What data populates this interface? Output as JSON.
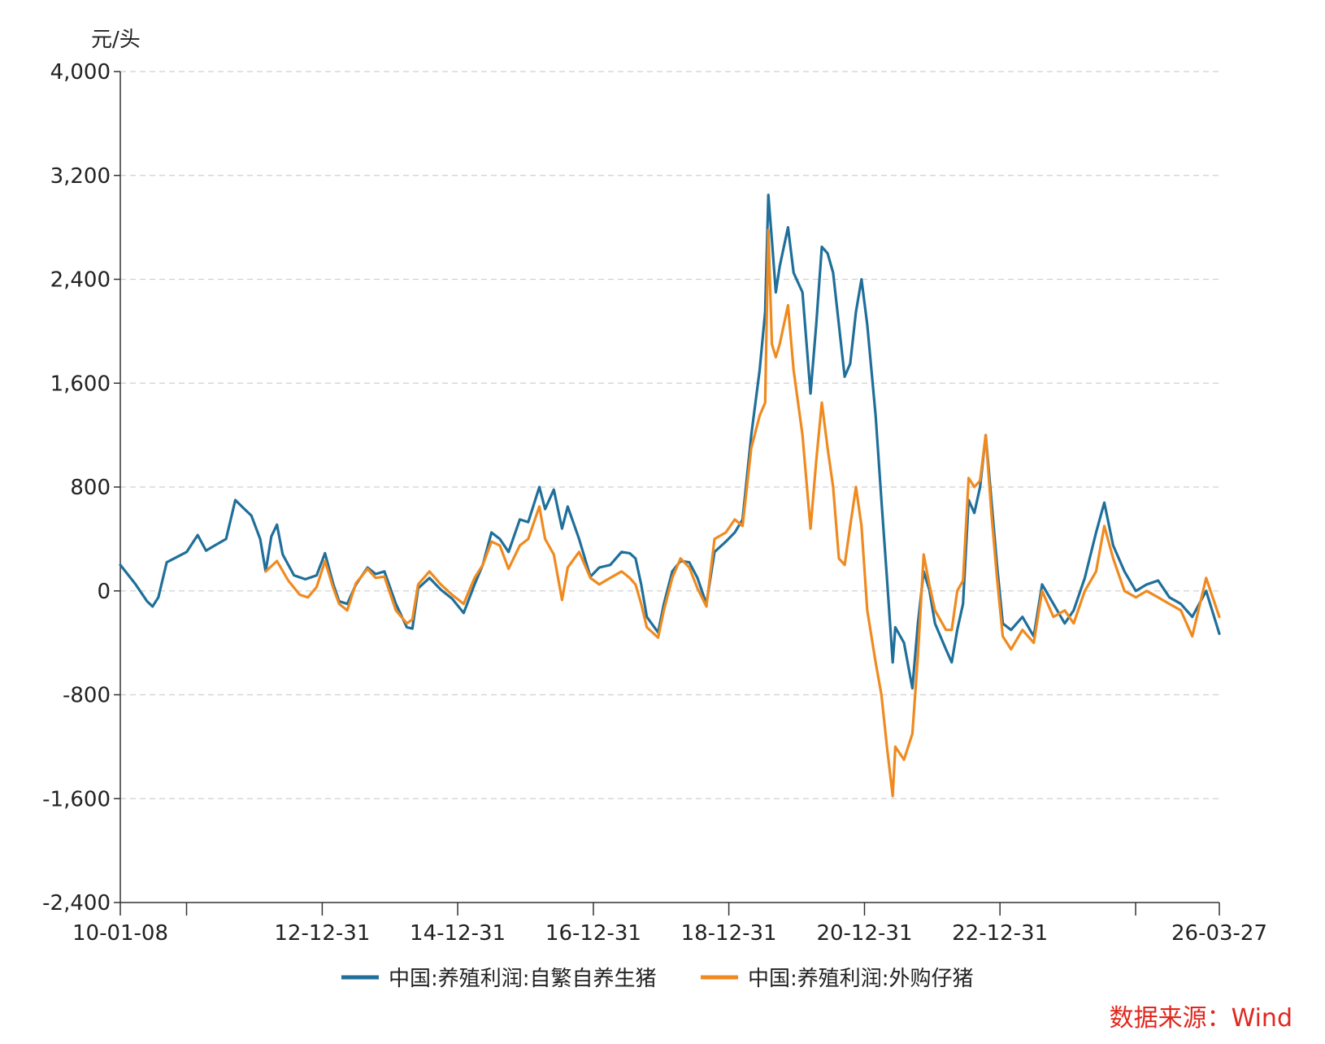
{
  "chart_data": {
    "type": "line",
    "ylabel": "元/头",
    "ylim": [
      -2400,
      4000
    ],
    "yticks": [
      4000,
      3200,
      2400,
      1600,
      800,
      0,
      -800,
      -1600,
      -2400
    ],
    "ytick_labels": [
      "4,000",
      "3,200",
      "2,400",
      "1,600",
      "800",
      "0",
      "-800",
      "-1,600",
      "-2,400"
    ],
    "xlim": [
      "2010-01-08",
      "2026-03-27"
    ],
    "xticks": [
      "2010-01-08",
      "2010-12-31",
      "2012-12-31",
      "2014-12-31",
      "2016-12-31",
      "2018-12-31",
      "2020-12-31",
      "2022-12-31",
      "2024-12-31",
      "2026-03-27"
    ],
    "xtick_labels": [
      "10-01-08",
      "",
      "12-12-31",
      "14-12-31",
      "16-12-31",
      "18-12-31",
      "20-12-31",
      "22-12-31",
      "",
      "26-03-27"
    ],
    "grid": "horizontal-dashed",
    "legend_position": "bottom",
    "source": "数据来源：Wind",
    "series": [
      {
        "name": "中国:养殖利润:自繁自养生猪",
        "color": "#1f6f9a",
        "points": [
          [
            "2010-01-08",
            200
          ],
          [
            "2010-04-01",
            50
          ],
          [
            "2010-06-01",
            -80
          ],
          [
            "2010-07-01",
            -120
          ],
          [
            "2010-08-01",
            -50
          ],
          [
            "2010-09-15",
            220
          ],
          [
            "2011-01-01",
            300
          ],
          [
            "2011-03-01",
            430
          ],
          [
            "2011-04-15",
            310
          ],
          [
            "2011-06-01",
            350
          ],
          [
            "2011-08-01",
            400
          ],
          [
            "2011-09-20",
            700
          ],
          [
            "2011-11-01",
            640
          ],
          [
            "2011-12-15",
            580
          ],
          [
            "2012-02-01",
            400
          ],
          [
            "2012-03-01",
            150
          ],
          [
            "2012-04-01",
            420
          ],
          [
            "2012-05-01",
            510
          ],
          [
            "2012-06-01",
            280
          ],
          [
            "2012-08-01",
            120
          ],
          [
            "2012-10-01",
            90
          ],
          [
            "2012-12-01",
            120
          ],
          [
            "2013-01-15",
            290
          ],
          [
            "2013-03-01",
            50
          ],
          [
            "2013-04-01",
            -80
          ],
          [
            "2013-05-15",
            -100
          ],
          [
            "2013-07-01",
            50
          ],
          [
            "2013-09-01",
            180
          ],
          [
            "2013-10-15",
            130
          ],
          [
            "2013-12-01",
            150
          ],
          [
            "2014-02-01",
            -100
          ],
          [
            "2014-04-01",
            -280
          ],
          [
            "2014-05-01",
            -290
          ],
          [
            "2014-06-01",
            20
          ],
          [
            "2014-08-01",
            100
          ],
          [
            "2014-10-01",
            10
          ],
          [
            "2014-12-01",
            -60
          ],
          [
            "2015-02-01",
            -170
          ],
          [
            "2015-04-01",
            50
          ],
          [
            "2015-05-15",
            200
          ],
          [
            "2015-07-01",
            450
          ],
          [
            "2015-08-15",
            400
          ],
          [
            "2015-10-01",
            300
          ],
          [
            "2015-12-01",
            550
          ],
          [
            "2016-01-15",
            530
          ],
          [
            "2016-03-15",
            800
          ],
          [
            "2016-04-15",
            630
          ],
          [
            "2016-06-01",
            780
          ],
          [
            "2016-07-15",
            480
          ],
          [
            "2016-08-15",
            650
          ],
          [
            "2016-10-15",
            400
          ],
          [
            "2016-12-15",
            110
          ],
          [
            "2017-02-01",
            180
          ],
          [
            "2017-04-01",
            200
          ],
          [
            "2017-06-01",
            300
          ],
          [
            "2017-07-15",
            290
          ],
          [
            "2017-08-15",
            250
          ],
          [
            "2017-09-15",
            50
          ],
          [
            "2017-10-15",
            -200
          ],
          [
            "2017-12-15",
            -320
          ],
          [
            "2018-01-15",
            -100
          ],
          [
            "2018-03-01",
            150
          ],
          [
            "2018-04-15",
            230
          ],
          [
            "2018-06-01",
            220
          ],
          [
            "2018-07-15",
            100
          ],
          [
            "2018-09-01",
            -100
          ],
          [
            "2018-10-15",
            300
          ],
          [
            "2018-12-15",
            380
          ],
          [
            "2019-02-01",
            450
          ],
          [
            "2019-03-15",
            550
          ],
          [
            "2019-05-01",
            1200
          ],
          [
            "2019-06-15",
            1700
          ],
          [
            "2019-07-15",
            2150
          ],
          [
            "2019-08-01",
            3050
          ],
          [
            "2019-08-20",
            2700
          ],
          [
            "2019-09-10",
            2300
          ],
          [
            "2019-10-01",
            2500
          ],
          [
            "2019-11-15",
            2800
          ],
          [
            "2019-12-15",
            2450
          ],
          [
            "2020-02-01",
            2300
          ],
          [
            "2020-03-15",
            1520
          ],
          [
            "2020-04-15",
            2050
          ],
          [
            "2020-05-15",
            2650
          ],
          [
            "2020-06-15",
            2600
          ],
          [
            "2020-07-15",
            2450
          ],
          [
            "2020-08-15",
            2050
          ],
          [
            "2020-09-15",
            1650
          ],
          [
            "2020-10-15",
            1750
          ],
          [
            "2020-11-15",
            2150
          ],
          [
            "2020-12-15",
            2400
          ],
          [
            "2021-01-15",
            2050
          ],
          [
            "2021-03-01",
            1350
          ],
          [
            "2021-04-01",
            700
          ],
          [
            "2021-05-01",
            100
          ],
          [
            "2021-06-01",
            -550
          ],
          [
            "2021-06-15",
            -280
          ],
          [
            "2021-08-01",
            -400
          ],
          [
            "2021-09-15",
            -750
          ],
          [
            "2021-10-15",
            -250
          ],
          [
            "2021-11-15",
            150
          ],
          [
            "2021-12-15",
            10
          ],
          [
            "2022-01-15",
            -250
          ],
          [
            "2022-03-15",
            -450
          ],
          [
            "2022-04-15",
            -550
          ],
          [
            "2022-05-15",
            -300
          ],
          [
            "2022-06-15",
            -100
          ],
          [
            "2022-07-15",
            700
          ],
          [
            "2022-08-15",
            600
          ],
          [
            "2022-09-15",
            800
          ],
          [
            "2022-10-15",
            1200
          ],
          [
            "2022-11-15",
            700
          ],
          [
            "2022-12-15",
            200
          ],
          [
            "2023-01-15",
            -250
          ],
          [
            "2023-03-01",
            -300
          ],
          [
            "2023-05-01",
            -200
          ],
          [
            "2023-07-01",
            -350
          ],
          [
            "2023-08-15",
            50
          ],
          [
            "2023-10-15",
            -100
          ],
          [
            "2023-12-15",
            -250
          ],
          [
            "2024-02-01",
            -150
          ],
          [
            "2024-04-01",
            100
          ],
          [
            "2024-06-01",
            450
          ],
          [
            "2024-07-15",
            680
          ],
          [
            "2024-09-01",
            350
          ],
          [
            "2024-11-01",
            150
          ],
          [
            "2025-01-01",
            0
          ],
          [
            "2025-03-01",
            50
          ],
          [
            "2025-05-01",
            80
          ],
          [
            "2025-07-01",
            -50
          ],
          [
            "2025-09-01",
            -100
          ],
          [
            "2025-11-01",
            -200
          ],
          [
            "2026-01-15",
            0
          ],
          [
            "2026-03-27",
            -330
          ]
        ]
      },
      {
        "name": "中国:养殖利润:外购仔猪",
        "color": "#f08a1f",
        "points": [
          [
            "2012-03-01",
            150
          ],
          [
            "2012-05-01",
            230
          ],
          [
            "2012-07-01",
            80
          ],
          [
            "2012-09-01",
            -30
          ],
          [
            "2012-10-15",
            -50
          ],
          [
            "2012-12-01",
            30
          ],
          [
            "2013-01-15",
            230
          ],
          [
            "2013-03-01",
            20
          ],
          [
            "2013-04-01",
            -100
          ],
          [
            "2013-05-15",
            -150
          ],
          [
            "2013-07-01",
            60
          ],
          [
            "2013-09-01",
            170
          ],
          [
            "2013-10-15",
            100
          ],
          [
            "2013-12-01",
            110
          ],
          [
            "2014-02-01",
            -150
          ],
          [
            "2014-04-01",
            -250
          ],
          [
            "2014-05-01",
            -220
          ],
          [
            "2014-06-01",
            50
          ],
          [
            "2014-08-01",
            150
          ],
          [
            "2014-10-01",
            50
          ],
          [
            "2014-12-01",
            -30
          ],
          [
            "2015-02-01",
            -100
          ],
          [
            "2015-04-01",
            100
          ],
          [
            "2015-05-15",
            200
          ],
          [
            "2015-07-01",
            380
          ],
          [
            "2015-08-15",
            350
          ],
          [
            "2015-10-01",
            170
          ],
          [
            "2015-12-01",
            350
          ],
          [
            "2016-01-15",
            400
          ],
          [
            "2016-03-15",
            650
          ],
          [
            "2016-04-15",
            400
          ],
          [
            "2016-06-01",
            280
          ],
          [
            "2016-07-15",
            -70
          ],
          [
            "2016-08-15",
            180
          ],
          [
            "2016-10-15",
            300
          ],
          [
            "2016-12-15",
            100
          ],
          [
            "2017-02-01",
            50
          ],
          [
            "2017-04-01",
            100
          ],
          [
            "2017-06-01",
            150
          ],
          [
            "2017-07-15",
            100
          ],
          [
            "2017-08-15",
            50
          ],
          [
            "2017-09-15",
            -100
          ],
          [
            "2017-10-15",
            -280
          ],
          [
            "2017-12-15",
            -360
          ],
          [
            "2018-01-15",
            -150
          ],
          [
            "2018-03-01",
            100
          ],
          [
            "2018-04-15",
            250
          ],
          [
            "2018-06-01",
            180
          ],
          [
            "2018-07-15",
            20
          ],
          [
            "2018-09-01",
            -120
          ],
          [
            "2018-10-15",
            400
          ],
          [
            "2018-12-15",
            450
          ],
          [
            "2019-02-01",
            550
          ],
          [
            "2019-03-15",
            500
          ],
          [
            "2019-05-01",
            1100
          ],
          [
            "2019-06-15",
            1350
          ],
          [
            "2019-07-15",
            1450
          ],
          [
            "2019-08-01",
            2780
          ],
          [
            "2019-08-20",
            1900
          ],
          [
            "2019-09-10",
            1800
          ],
          [
            "2019-10-01",
            1900
          ],
          [
            "2019-11-15",
            2200
          ],
          [
            "2019-12-15",
            1700
          ],
          [
            "2020-02-01",
            1200
          ],
          [
            "2020-03-15",
            480
          ],
          [
            "2020-04-15",
            1000
          ],
          [
            "2020-05-15",
            1450
          ],
          [
            "2020-06-15",
            1100
          ],
          [
            "2020-07-15",
            800
          ],
          [
            "2020-08-15",
            250
          ],
          [
            "2020-09-15",
            200
          ],
          [
            "2020-10-15",
            500
          ],
          [
            "2020-11-15",
            800
          ],
          [
            "2020-12-15",
            500
          ],
          [
            "2021-01-15",
            -150
          ],
          [
            "2021-03-01",
            -550
          ],
          [
            "2021-04-01",
            -800
          ],
          [
            "2021-05-01",
            -1200
          ],
          [
            "2021-06-01",
            -1580
          ],
          [
            "2021-06-15",
            -1200
          ],
          [
            "2021-08-01",
            -1300
          ],
          [
            "2021-09-15",
            -1100
          ],
          [
            "2021-10-15",
            -500
          ],
          [
            "2021-11-15",
            280
          ],
          [
            "2021-12-15",
            50
          ],
          [
            "2022-01-15",
            -150
          ],
          [
            "2022-03-15",
            -300
          ],
          [
            "2022-04-15",
            -300
          ],
          [
            "2022-05-15",
            0
          ],
          [
            "2022-06-15",
            80
          ],
          [
            "2022-07-15",
            870
          ],
          [
            "2022-08-15",
            800
          ],
          [
            "2022-09-15",
            850
          ],
          [
            "2022-10-15",
            1200
          ],
          [
            "2022-11-15",
            600
          ],
          [
            "2022-12-15",
            100
          ],
          [
            "2023-01-15",
            -350
          ],
          [
            "2023-03-01",
            -450
          ],
          [
            "2023-05-01",
            -300
          ],
          [
            "2023-07-01",
            -400
          ],
          [
            "2023-08-15",
            0
          ],
          [
            "2023-10-15",
            -200
          ],
          [
            "2023-12-15",
            -150
          ],
          [
            "2024-02-01",
            -250
          ],
          [
            "2024-04-01",
            0
          ],
          [
            "2024-06-01",
            150
          ],
          [
            "2024-07-15",
            500
          ],
          [
            "2024-09-01",
            250
          ],
          [
            "2024-11-01",
            0
          ],
          [
            "2025-01-01",
            -50
          ],
          [
            "2025-03-01",
            0
          ],
          [
            "2025-05-01",
            -50
          ],
          [
            "2025-07-01",
            -100
          ],
          [
            "2025-09-01",
            -150
          ],
          [
            "2025-11-01",
            -350
          ],
          [
            "2026-01-15",
            100
          ],
          [
            "2026-03-27",
            -200
          ]
        ]
      }
    ]
  }
}
